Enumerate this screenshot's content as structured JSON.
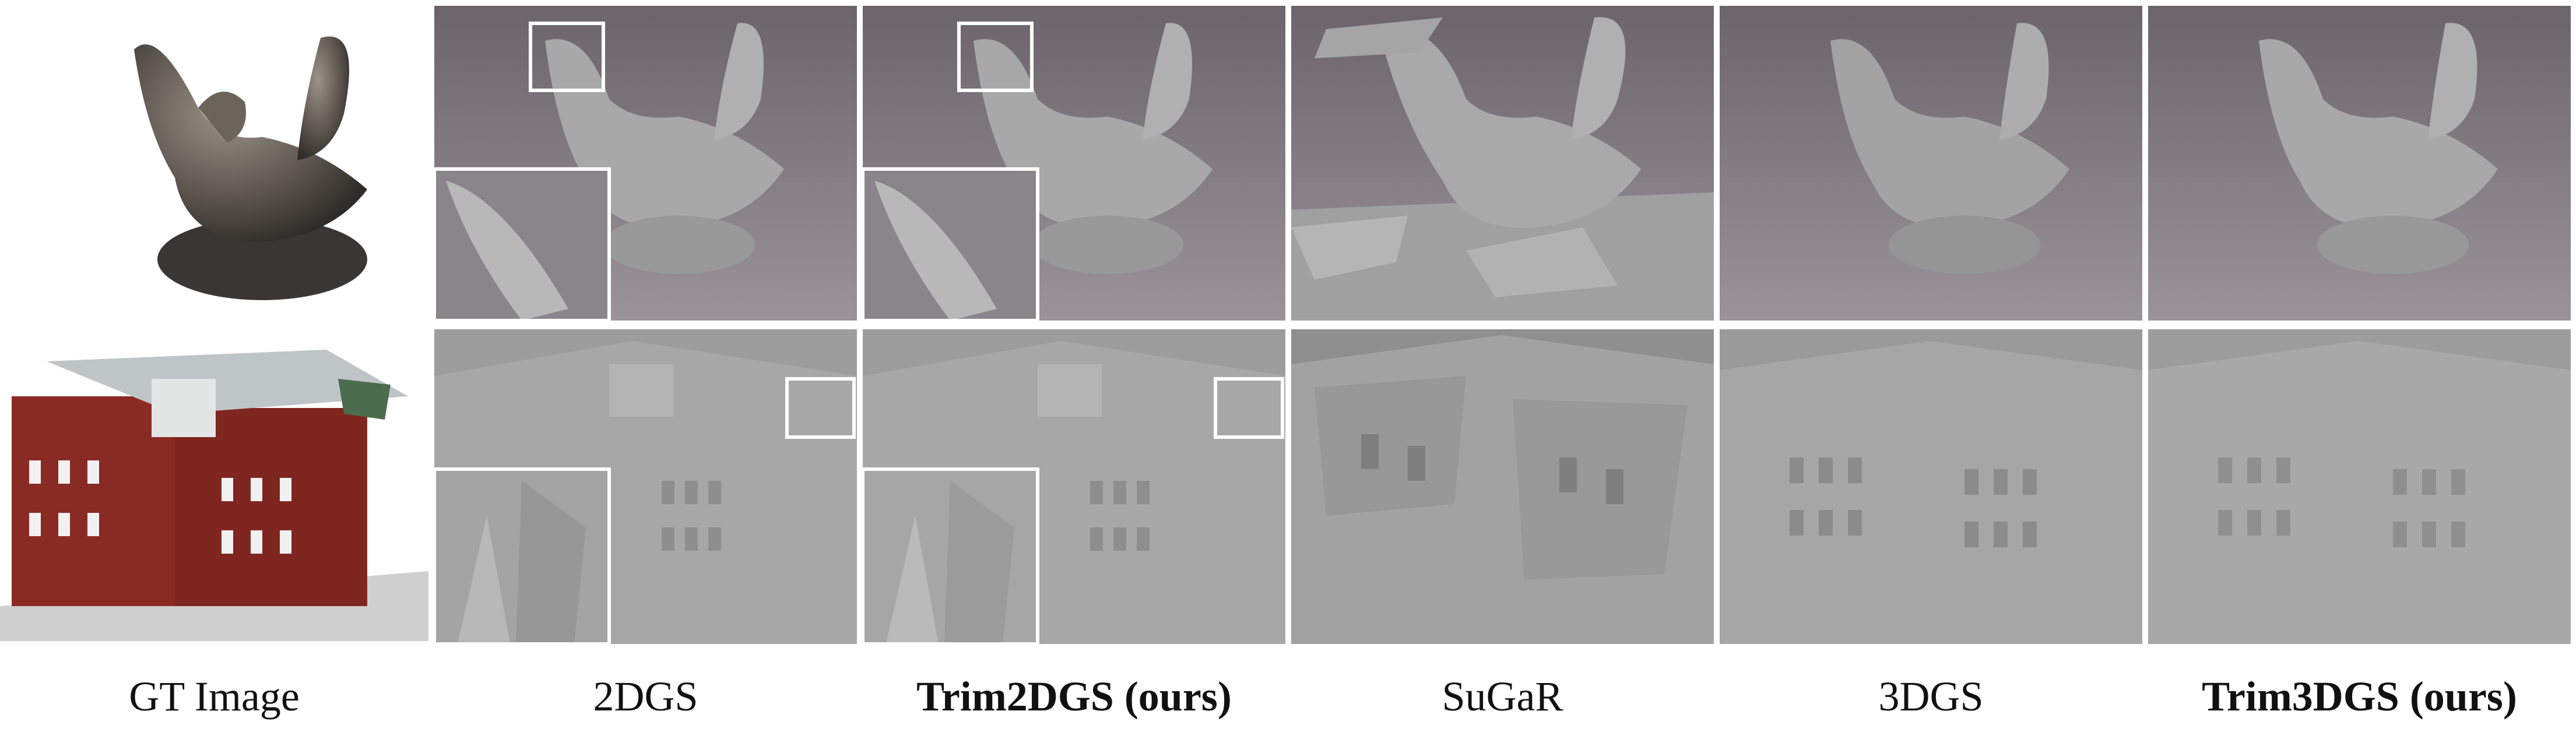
{
  "columns": [
    {
      "label": "GT Image",
      "bold": false
    },
    {
      "label": "2DGS",
      "bold": false
    },
    {
      "label": "Trim2DGS (ours)",
      "bold": true
    },
    {
      "label": "SuGaR",
      "bold": false
    },
    {
      "label": "3DGS",
      "bold": false
    },
    {
      "label": "Trim3DGS (ours)",
      "bold": true
    }
  ],
  "colors": {
    "background_top": "#7c767c",
    "background_top_dark": "#5f595f",
    "background_bottom": "#9a9a9a",
    "mesh_gray": "#a9a9a9",
    "brick_red": "#8a2a24",
    "inset_border": "#ffffff"
  },
  "icons": {
    "dove_model": "dove-sculpture-render",
    "building_model": "brick-building-render"
  }
}
